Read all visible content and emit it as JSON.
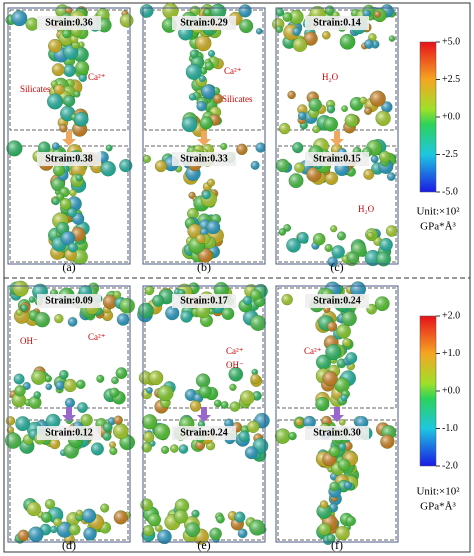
{
  "panels": [
    {
      "label": "(a)",
      "top": {
        "strain": "Strain:0.36",
        "annotations": [
          "Silicates",
          "Ca²⁺"
        ]
      },
      "bottom": {
        "strain": "Strain:0.38"
      }
    },
    {
      "label": "(b)",
      "top": {
        "strain": "Strain:0.29",
        "annotations": [
          "Ca²⁺",
          "Silicates"
        ]
      },
      "bottom": {
        "strain": "Strain:0.33"
      }
    },
    {
      "label": "(c)",
      "top": {
        "strain": "Strain:0.14",
        "annotations": [
          "H₂O"
        ]
      },
      "bottom": {
        "strain": "Strain:0.15",
        "annotations": [
          "H₂O"
        ]
      }
    },
    {
      "label": "(d)",
      "top": {
        "strain": "Strain:0.09",
        "annotations": [
          "OH⁻",
          "Ca²⁺"
        ]
      },
      "bottom": {
        "strain": "Strain:0.12"
      }
    },
    {
      "label": "(e)",
      "top": {
        "strain": "Strain:0.17",
        "annotations": [
          "Ca²⁺",
          "OH⁻"
        ]
      },
      "bottom": {
        "strain": "Strain:0.24"
      }
    },
    {
      "label": "(f)",
      "top": {
        "strain": "Strain:0.24",
        "annotations": [
          "Ca²⁺"
        ]
      },
      "bottom": {
        "strain": "Strain:0.30"
      }
    }
  ],
  "colorbars": [
    {
      "ticks": [
        "+5.0",
        "+2.5",
        "+0.0",
        "-2.5",
        "-5.0"
      ],
      "unit": "Unit:×10²",
      "unit2": "GPa*Å³"
    },
    {
      "ticks": [
        "+2.0",
        "+1.0",
        "+0.0",
        "-1.0",
        "-2.0"
      ],
      "unit": "Unit:×10²",
      "unit2": "GPa*Å³"
    }
  ]
}
